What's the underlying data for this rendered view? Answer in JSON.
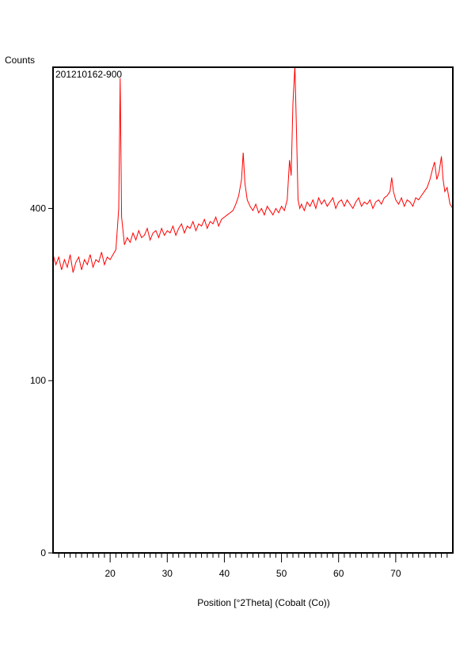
{
  "chart_data": {
    "type": "line",
    "title": "",
    "sample_label": "201210162-900",
    "ylabel": "Counts",
    "xlabel": "Position [°2Theta] (Cobalt (Co))",
    "y_scale": "sqrt",
    "xlim": [
      10,
      80
    ],
    "ylim": [
      0,
      795
    ],
    "x_ticks": [
      20,
      30,
      40,
      50,
      60,
      70
    ],
    "x_minor_step": 1,
    "y_ticks": [
      0,
      100,
      400
    ],
    "grid": false,
    "legend": "none",
    "series_color": "#ff0000",
    "x": [
      10,
      10.5,
      11,
      11.5,
      12,
      12.5,
      13,
      13.5,
      14,
      14.5,
      15,
      15.5,
      16,
      16.5,
      17,
      17.5,
      18,
      18.5,
      19,
      19.5,
      20,
      20.5,
      21,
      21.5,
      21.75,
      22,
      22.5,
      23,
      23.5,
      24,
      24.5,
      25,
      25.5,
      26,
      26.5,
      27,
      27.5,
      28,
      28.5,
      29,
      29.5,
      30,
      30.5,
      31,
      31.5,
      32,
      32.5,
      33,
      33.5,
      34,
      34.5,
      35,
      35.5,
      36,
      36.5,
      37,
      37.5,
      38,
      38.5,
      39,
      39.5,
      40,
      40.5,
      41,
      41.5,
      42,
      42.5,
      43,
      43.3,
      43.6,
      44,
      44.5,
      45,
      45.5,
      46,
      46.5,
      47,
      47.5,
      48,
      48.5,
      49,
      49.5,
      50,
      50.5,
      51,
      51.4,
      51.7,
      52,
      52.35,
      52.6,
      52.9,
      53.2,
      53.5,
      54,
      54.5,
      55,
      55.5,
      56,
      56.5,
      57,
      57.5,
      58,
      58.5,
      59,
      59.5,
      60,
      60.5,
      61,
      61.5,
      62,
      62.5,
      63,
      63.5,
      64,
      64.5,
      65,
      65.5,
      66,
      66.5,
      67,
      67.5,
      68,
      68.5,
      69,
      69.3,
      69.6,
      70,
      70.5,
      71,
      71.5,
      72,
      72.5,
      73,
      73.5,
      74,
      74.5,
      75,
      75.5,
      76,
      76.5,
      76.8,
      77.2,
      77.6,
      78,
      78.3,
      78.6,
      79,
      79.5,
      80
    ],
    "y": [
      300,
      280,
      295,
      270,
      290,
      275,
      300,
      265,
      285,
      295,
      270,
      290,
      280,
      300,
      275,
      290,
      285,
      305,
      280,
      295,
      290,
      300,
      310,
      400,
      760,
      380,
      320,
      335,
      325,
      345,
      330,
      350,
      335,
      340,
      355,
      330,
      345,
      350,
      335,
      355,
      340,
      350,
      345,
      360,
      340,
      355,
      365,
      345,
      360,
      355,
      370,
      350,
      365,
      360,
      375,
      355,
      370,
      365,
      380,
      360,
      375,
      380,
      385,
      390,
      395,
      410,
      430,
      470,
      540,
      460,
      420,
      405,
      395,
      410,
      390,
      400,
      385,
      405,
      395,
      385,
      400,
      390,
      405,
      395,
      420,
      520,
      480,
      680,
      800,
      620,
      420,
      400,
      410,
      395,
      415,
      405,
      420,
      400,
      425,
      410,
      420,
      405,
      415,
      425,
      400,
      415,
      420,
      405,
      420,
      410,
      400,
      415,
      425,
      405,
      415,
      410,
      420,
      400,
      415,
      420,
      410,
      425,
      430,
      440,
      475,
      440,
      420,
      410,
      425,
      405,
      420,
      415,
      405,
      425,
      420,
      430,
      440,
      450,
      470,
      500,
      515,
      470,
      490,
      530,
      470,
      440,
      450,
      410,
      400
    ]
  }
}
